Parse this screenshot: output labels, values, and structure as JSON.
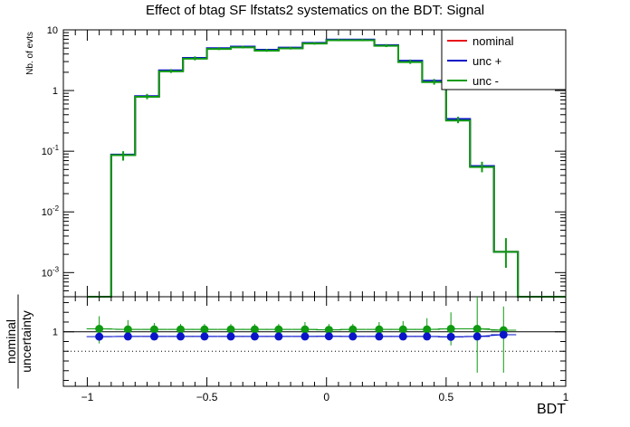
{
  "title": "Effect of btag SF lfstats2 systematics on the BDT: Signal",
  "colors": {
    "nominal": "#e8141b",
    "unc_up": "#0a14c8",
    "unc_down": "#0f9a12",
    "axis": "#000000"
  },
  "chart_data": [
    {
      "type": "step-histogram",
      "ylabel": "Nb. of evts",
      "yscale": "log",
      "ylim": [
        0.0004,
        10
      ],
      "xlim": [
        -1.1,
        1.0
      ],
      "y_tick_labels": [
        {
          "base": "10",
          "exp": "-3",
          "value": 0.001
        },
        {
          "base": "10",
          "exp": "-2",
          "value": 0.01
        },
        {
          "base": "10",
          "exp": "-1",
          "value": 0.1
        },
        {
          "base": "1",
          "exp": "",
          "value": 1
        },
        {
          "base": "10",
          "exp": "",
          "value": 10
        }
      ],
      "bin_edges": [
        -1.0,
        -0.9,
        -0.8,
        -0.7,
        -0.6,
        -0.5,
        -0.4,
        -0.3,
        -0.2,
        -0.1,
        0.0,
        0.1,
        0.2,
        0.3,
        0.4,
        0.5,
        0.6,
        0.7,
        0.8,
        0.9,
        1.0
      ],
      "series": [
        {
          "name": "nominal",
          "color": "#e8141b",
          "values": [
            0.0,
            0.087,
            0.8,
            2.1,
            3.4,
            4.9,
            5.2,
            4.6,
            5.0,
            6.0,
            6.8,
            6.8,
            5.5,
            3.0,
            1.4,
            0.33,
            0.056,
            0.0022,
            0.0,
            0.0
          ]
        },
        {
          "name": "unc +",
          "color": "#0a14c8",
          "values": [
            0.0,
            0.088,
            0.81,
            2.15,
            3.45,
            5.0,
            5.3,
            4.7,
            5.1,
            6.1,
            6.9,
            6.9,
            5.6,
            3.1,
            1.45,
            0.34,
            0.057,
            0.0022,
            0.0,
            0.0
          ]
        },
        {
          "name": "unc -",
          "color": "#0f9a12",
          "values": [
            0.0,
            0.086,
            0.79,
            2.07,
            3.35,
            4.85,
            5.15,
            4.55,
            4.95,
            5.95,
            6.75,
            6.75,
            5.45,
            2.95,
            1.38,
            0.32,
            0.055,
            0.0022,
            0.0,
            0.0
          ]
        }
      ],
      "error_bars": {
        "bins": [
          1,
          2,
          3,
          4,
          5,
          6,
          7,
          8,
          9,
          10,
          11,
          12,
          13,
          14,
          15,
          16,
          17
        ],
        "low": [
          0.07,
          0.72,
          1.95,
          3.15,
          4.65,
          4.95,
          4.35,
          4.75,
          5.7,
          6.5,
          6.5,
          5.2,
          2.75,
          1.25,
          0.29,
          0.045,
          0.0012
        ],
        "high": [
          0.1,
          0.88,
          2.25,
          3.65,
          5.15,
          5.45,
          4.85,
          5.25,
          6.3,
          7.1,
          7.1,
          5.8,
          3.25,
          1.55,
          0.37,
          0.067,
          0.0037
        ]
      },
      "legend": {
        "placement": "top-right",
        "entries": [
          "nominal",
          "unc +",
          "unc -"
        ]
      }
    },
    {
      "type": "scatter-ratio",
      "ylabel_numerator": "nominal",
      "ylabel_denominator": "uncertainty",
      "xlabel": "BDT",
      "xlim": [
        -1.1,
        1.0
      ],
      "ylim": [
        0.72,
        1.18
      ],
      "y_tick_labels": [
        "1"
      ],
      "x_tick_labels": [
        "−1",
        "−0.5",
        "0",
        "0.5",
        "1"
      ],
      "reference_lines": [
        {
          "value": 1.0,
          "style": "solid"
        },
        {
          "value": 0.9,
          "style": "dotted"
        }
      ],
      "x": [
        -0.95,
        -0.83,
        -0.72,
        -0.61,
        -0.51,
        -0.4,
        -0.3,
        -0.2,
        -0.09,
        0.01,
        0.11,
        0.22,
        0.32,
        0.42,
        0.52,
        0.63,
        0.74
      ],
      "series": [
        {
          "name": "unc -",
          "color": "#0f9a12",
          "values": [
            1.015,
            1.012,
            1.012,
            1.012,
            1.012,
            1.012,
            1.012,
            1.012,
            1.012,
            1.01,
            1.012,
            1.012,
            1.012,
            1.012,
            1.015,
            1.015,
            1.008
          ]
        },
        {
          "name": "unc +",
          "color": "#0a14c8",
          "values": [
            0.975,
            0.976,
            0.976,
            0.976,
            0.976,
            0.976,
            0.976,
            0.976,
            0.976,
            0.977,
            0.976,
            0.976,
            0.976,
            0.976,
            0.974,
            0.976,
            0.985
          ]
        }
      ],
      "error_low": [
        0.94,
        0.97,
        0.975,
        0.978,
        0.978,
        0.978,
        0.978,
        0.978,
        0.975,
        0.978,
        0.978,
        0.975,
        0.97,
        0.96,
        0.93,
        0.79,
        0.79
      ],
      "error_high": [
        1.08,
        1.06,
        1.045,
        1.04,
        1.04,
        1.04,
        1.04,
        1.04,
        1.05,
        1.04,
        1.04,
        1.05,
        1.055,
        1.07,
        1.1,
        1.18,
        1.13
      ]
    }
  ]
}
